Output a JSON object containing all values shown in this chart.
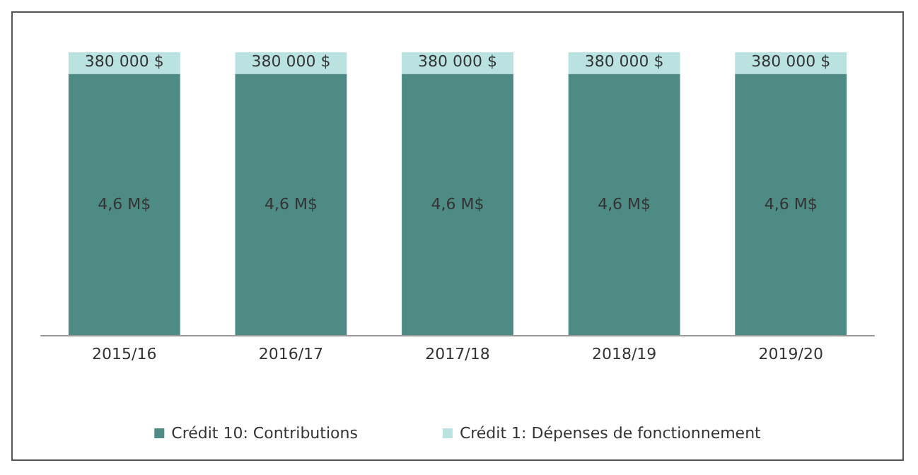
{
  "chart_data": {
    "type": "bar",
    "stacked": true,
    "categories": [
      "2015/16",
      "2016/17",
      "2017/18",
      "2018/19",
      "2019/20"
    ],
    "series": [
      {
        "name": "Crédit 10: Contributions",
        "color": "#4e8b85",
        "values": [
          4600000,
          4600000,
          4600000,
          4600000,
          4600000
        ],
        "value_labels": [
          "4,6 M$",
          "4,6 M$",
          "4,6 M$",
          "4,6 M$",
          "4,6 M$"
        ]
      },
      {
        "name": "Crédit 1: Dépenses de fonctionnement",
        "color": "#b9e2e1",
        "values": [
          380000,
          380000,
          380000,
          380000,
          380000
        ],
        "value_labels": [
          "380 000 $",
          "380 000 $",
          "380 000 $",
          "380 000 $",
          "380 000 $"
        ]
      }
    ],
    "legend": "bottom"
  }
}
